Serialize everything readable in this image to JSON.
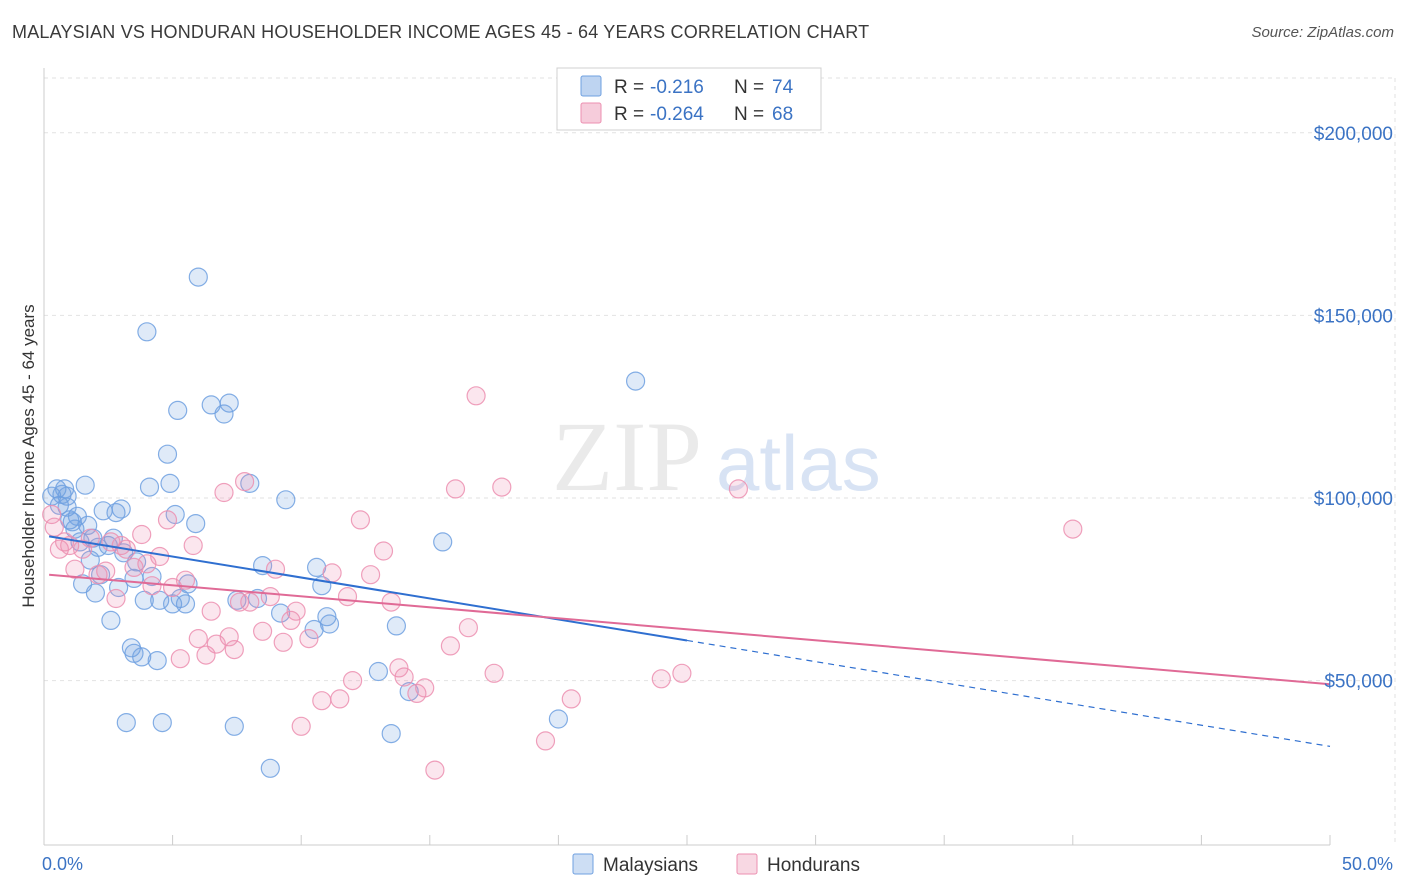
{
  "header": {
    "title": "MALAYSIAN VS HONDURAN HOUSEHOLDER INCOME AGES 45 - 64 YEARS CORRELATION CHART",
    "source": "Source: ZipAtlas.com"
  },
  "watermark": {
    "zip": "ZIP",
    "atlas": "atlas"
  },
  "legend": {
    "r_label": "R =",
    "n_label": "N =",
    "rows": [
      {
        "r": "-0.216",
        "n": "74",
        "color": "#6fa0e0"
      },
      {
        "r": "-0.264",
        "n": "68",
        "color": "#ec8fb0"
      }
    ]
  },
  "bottom_legend": [
    "Malaysians",
    "Hondurans"
  ],
  "chart_data": {
    "type": "scatter",
    "title": "MALAYSIAN VS HONDURAN HOUSEHOLDER INCOME AGES 45 - 64 YEARS CORRELATION CHART",
    "ylabel": "Householder Income Ages 45 - 64 years",
    "xlim": [
      0,
      50
    ],
    "ylim": [
      5000,
      215000
    ],
    "x_tick_labels": [
      "0.0%",
      "50.0%"
    ],
    "y_ticks": [
      {
        "value": 50000,
        "label": "$50,000"
      },
      {
        "value": 100000,
        "label": "$100,000"
      },
      {
        "value": 150000,
        "label": "$150,000"
      },
      {
        "value": 200000,
        "label": "$200,000"
      }
    ],
    "grid": true,
    "series": [
      {
        "name": "Malaysians",
        "color": "#6fa0e0",
        "trend": {
          "x": [
            0.2,
            25
          ],
          "y": [
            89500,
            61000
          ],
          "extend_to": [
            50,
            32000
          ]
        },
        "points": [
          [
            0.3,
            100500
          ],
          [
            0.5,
            102500
          ],
          [
            0.6,
            98000
          ],
          [
            0.7,
            101000
          ],
          [
            0.8,
            102500
          ],
          [
            0.9,
            97500
          ],
          [
            1.0,
            94000
          ],
          [
            1.1,
            93500
          ],
          [
            1.2,
            91500
          ],
          [
            1.3,
            95000
          ],
          [
            1.4,
            88000
          ],
          [
            1.5,
            76500
          ],
          [
            1.6,
            103500
          ],
          [
            1.7,
            92500
          ],
          [
            1.8,
            83000
          ],
          [
            1.9,
            89000
          ],
          [
            2.0,
            74000
          ],
          [
            2.2,
            79000
          ],
          [
            2.3,
            96500
          ],
          [
            2.5,
            87000
          ],
          [
            2.6,
            66500
          ],
          [
            2.7,
            89000
          ],
          [
            2.8,
            96000
          ],
          [
            2.9,
            75500
          ],
          [
            3.0,
            97000
          ],
          [
            3.1,
            85000
          ],
          [
            3.2,
            38500
          ],
          [
            3.4,
            59000
          ],
          [
            3.5,
            78000
          ],
          [
            3.6,
            82500
          ],
          [
            3.8,
            56500
          ],
          [
            3.9,
            72000
          ],
          [
            4.0,
            145500
          ],
          [
            4.1,
            103000
          ],
          [
            4.2,
            78500
          ],
          [
            4.4,
            55500
          ],
          [
            4.5,
            72000
          ],
          [
            4.6,
            38500
          ],
          [
            4.8,
            112000
          ],
          [
            4.9,
            104000
          ],
          [
            5.0,
            71000
          ],
          [
            5.1,
            95500
          ],
          [
            5.2,
            124000
          ],
          [
            5.3,
            72500
          ],
          [
            5.5,
            71000
          ],
          [
            5.6,
            76500
          ],
          [
            5.9,
            93000
          ],
          [
            6.0,
            160500
          ],
          [
            6.5,
            125500
          ],
          [
            7.0,
            123000
          ],
          [
            7.2,
            126000
          ],
          [
            7.4,
            37500
          ],
          [
            7.5,
            72000
          ],
          [
            8.0,
            104000
          ],
          [
            8.3,
            72500
          ],
          [
            8.5,
            81500
          ],
          [
            8.8,
            26000
          ],
          [
            9.2,
            68500
          ],
          [
            9.4,
            99500
          ],
          [
            10.5,
            64000
          ],
          [
            10.6,
            81000
          ],
          [
            10.8,
            76000
          ],
          [
            11.0,
            67500
          ],
          [
            11.1,
            65500
          ],
          [
            13.0,
            52500
          ],
          [
            13.5,
            35500
          ],
          [
            13.7,
            65000
          ],
          [
            14.2,
            47000
          ],
          [
            15.5,
            88000
          ],
          [
            20.0,
            39500
          ],
          [
            23.0,
            132000
          ],
          [
            3.5,
            57500
          ],
          [
            2.1,
            86500
          ],
          [
            0.9,
            100500
          ]
        ]
      },
      {
        "name": "Hondurans",
        "color": "#ec8fb0",
        "trend": {
          "x": [
            0.2,
            50
          ],
          "y": [
            79000,
            49000
          ]
        },
        "points": [
          [
            0.3,
            95500
          ],
          [
            0.4,
            92000
          ],
          [
            0.6,
            86000
          ],
          [
            0.8,
            88000
          ],
          [
            1.0,
            87000
          ],
          [
            1.2,
            80500
          ],
          [
            1.5,
            86000
          ],
          [
            1.8,
            89000
          ],
          [
            2.1,
            79000
          ],
          [
            2.4,
            80000
          ],
          [
            2.6,
            88000
          ],
          [
            2.8,
            72500
          ],
          [
            3.0,
            87000
          ],
          [
            3.2,
            86000
          ],
          [
            3.5,
            81000
          ],
          [
            3.8,
            90000
          ],
          [
            4.0,
            82000
          ],
          [
            4.2,
            76000
          ],
          [
            4.5,
            84000
          ],
          [
            4.8,
            94000
          ],
          [
            5.0,
            75500
          ],
          [
            5.3,
            56000
          ],
          [
            5.5,
            77500
          ],
          [
            5.8,
            87000
          ],
          [
            6.0,
            61500
          ],
          [
            6.3,
            57000
          ],
          [
            6.5,
            69000
          ],
          [
            6.7,
            60000
          ],
          [
            7.0,
            101500
          ],
          [
            7.2,
            62000
          ],
          [
            7.4,
            58500
          ],
          [
            7.6,
            71500
          ],
          [
            7.8,
            104500
          ],
          [
            8.0,
            71500
          ],
          [
            8.5,
            63500
          ],
          [
            8.8,
            73000
          ],
          [
            9.0,
            80500
          ],
          [
            9.3,
            60500
          ],
          [
            9.6,
            66500
          ],
          [
            9.8,
            69000
          ],
          [
            10.0,
            37500
          ],
          [
            10.3,
            61500
          ],
          [
            10.8,
            44500
          ],
          [
            11.2,
            79500
          ],
          [
            11.5,
            45000
          ],
          [
            11.8,
            73000
          ],
          [
            12.0,
            50000
          ],
          [
            12.3,
            94000
          ],
          [
            12.7,
            79000
          ],
          [
            13.2,
            85500
          ],
          [
            13.5,
            71500
          ],
          [
            13.8,
            53500
          ],
          [
            14.0,
            51000
          ],
          [
            14.5,
            46500
          ],
          [
            14.8,
            48000
          ],
          [
            15.2,
            25500
          ],
          [
            15.8,
            59500
          ],
          [
            16.0,
            102500
          ],
          [
            16.5,
            64500
          ],
          [
            16.8,
            128000
          ],
          [
            17.5,
            52000
          ],
          [
            17.8,
            103000
          ],
          [
            19.5,
            33500
          ],
          [
            20.5,
            45000
          ],
          [
            24.0,
            50500
          ],
          [
            24.8,
            52000
          ],
          [
            27.0,
            102500
          ],
          [
            40.0,
            91500
          ]
        ]
      }
    ]
  }
}
